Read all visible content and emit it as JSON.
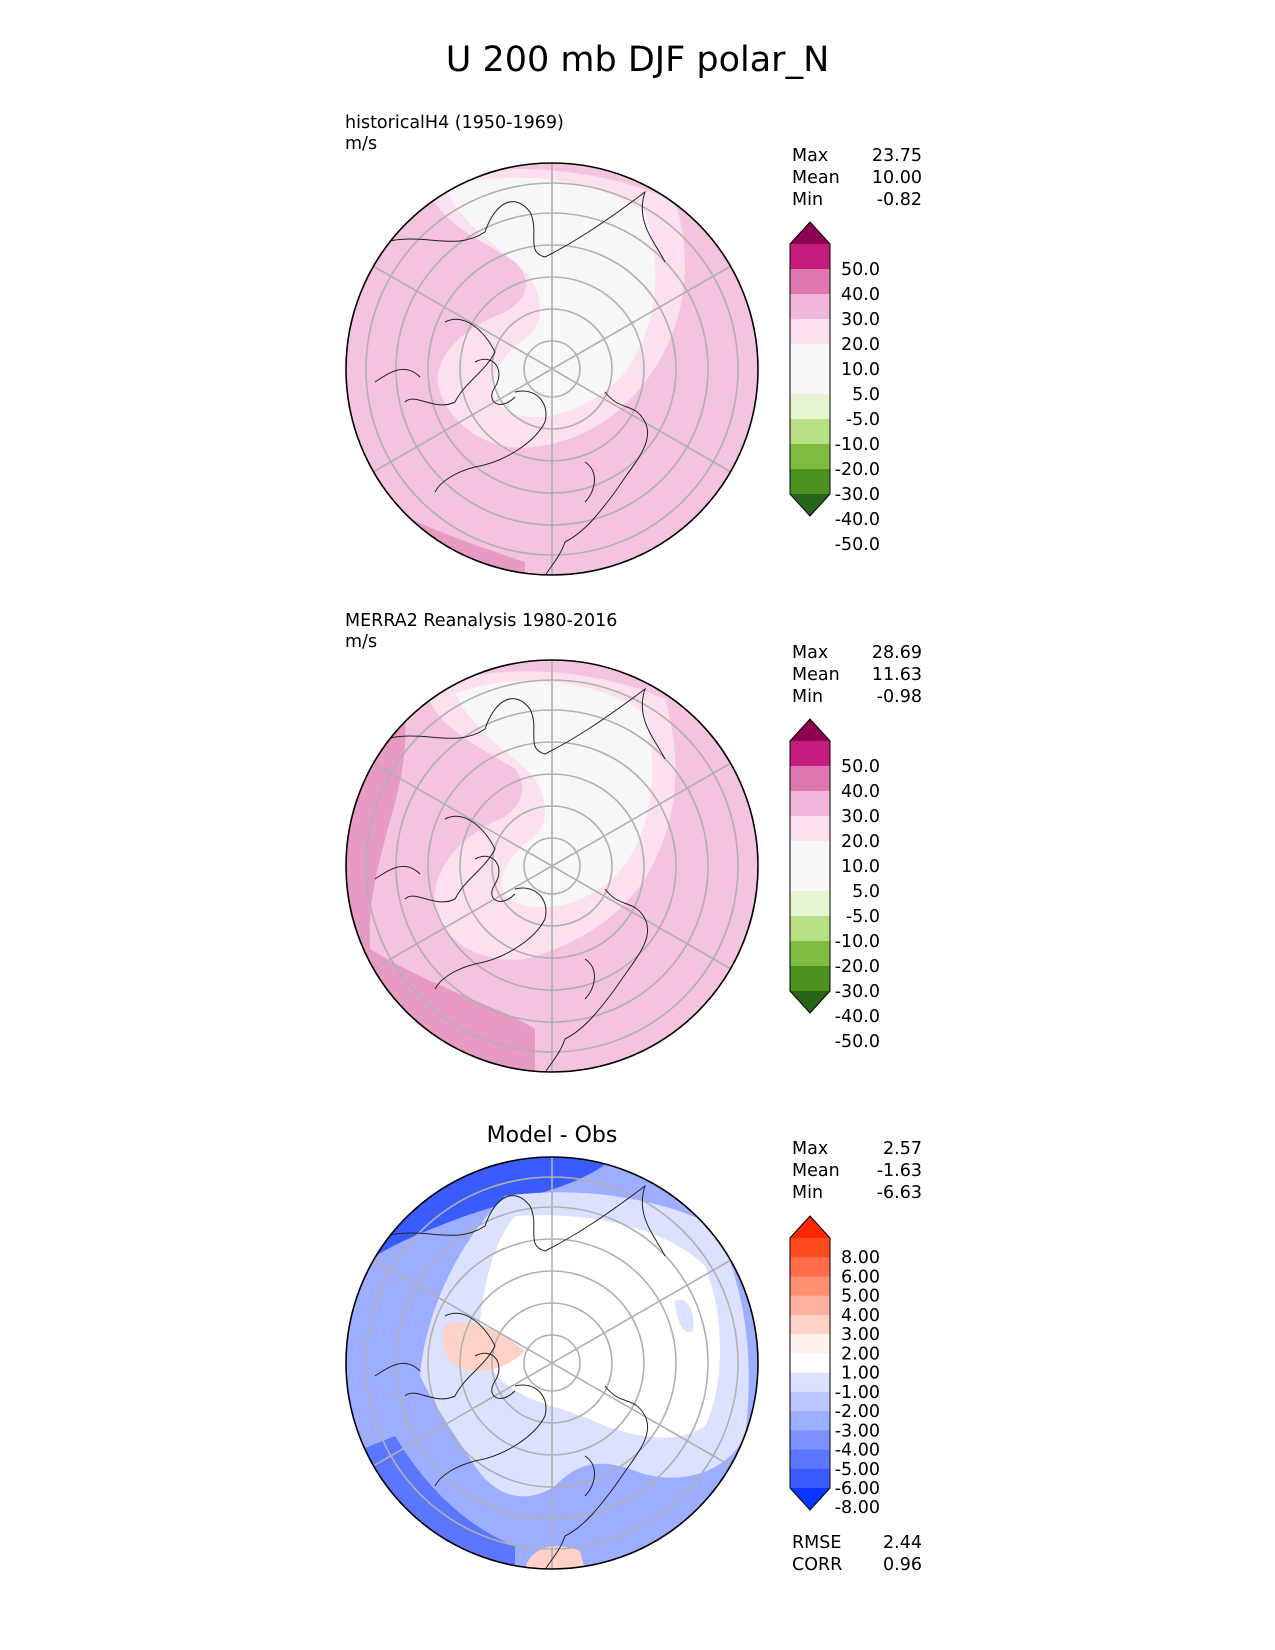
{
  "title": "U 200 mb DJF polar_N",
  "panels": [
    {
      "label_line1": "historicalH4 (1950-1969)",
      "label_line2": "m/s",
      "stats": [
        {
          "label": "Max",
          "value": "23.75"
        },
        {
          "label": "Mean",
          "value": "10.00"
        },
        {
          "label": "Min",
          "value": "-0.82"
        }
      ],
      "colorbar": {
        "ticks": [
          "50.0",
          "40.0",
          "30.0",
          "20.0",
          "10.0",
          "5.0",
          "-5.0",
          "-10.0",
          "-20.0",
          "-30.0",
          "-40.0",
          "-50.0"
        ],
        "colors_top_to_bottom": [
          "#8e0152",
          "#c51b7d",
          "#de77ae",
          "#f1b6da",
          "#fde0ef",
          "#f7f7f7",
          "#f7f7f7",
          "#e6f5d0",
          "#b8e186",
          "#7fbc41",
          "#4d9221",
          "#276419"
        ]
      }
    },
    {
      "label_line1": "MERRA2 Reanalysis 1980-2016",
      "label_line2": "m/s",
      "stats": [
        {
          "label": "Max",
          "value": "28.69"
        },
        {
          "label": "Mean",
          "value": "11.63"
        },
        {
          "label": "Min",
          "value": "-0.98"
        }
      ],
      "colorbar": {
        "ticks": [
          "50.0",
          "40.0",
          "30.0",
          "20.0",
          "10.0",
          "5.0",
          "-5.0",
          "-10.0",
          "-20.0",
          "-30.0",
          "-40.0",
          "-50.0"
        ],
        "colors_top_to_bottom": [
          "#8e0152",
          "#c51b7d",
          "#de77ae",
          "#f1b6da",
          "#fde0ef",
          "#f7f7f7",
          "#f7f7f7",
          "#e6f5d0",
          "#b8e186",
          "#7fbc41",
          "#4d9221",
          "#276419"
        ]
      }
    },
    {
      "center_title": "Model - Obs",
      "stats": [
        {
          "label": "Max",
          "value": "2.57"
        },
        {
          "label": "Mean",
          "value": "-1.63"
        },
        {
          "label": "Min",
          "value": "-6.63"
        }
      ],
      "bottom_stats": [
        {
          "label": "RMSE",
          "value": "2.44"
        },
        {
          "label": "CORR",
          "value": "0.96"
        }
      ],
      "colorbar": {
        "ticks": [
          "8.00",
          "6.00",
          "5.00",
          "4.00",
          "3.00",
          "2.00",
          "1.00",
          "-1.00",
          "-2.00",
          "-3.00",
          "-4.00",
          "-5.00",
          "-6.00",
          "-8.00"
        ],
        "colors_top_to_bottom": [
          "#ff2800",
          "#ff4a1f",
          "#ff6d4a",
          "#ff8f73",
          "#ffb09e",
          "#ffd2c7",
          "#fff1ec",
          "#ffffff",
          "#dbe1ff",
          "#bdc7ff",
          "#9dadff",
          "#7d92ff",
          "#5c77ff",
          "#3a5cff",
          "#0a37ff"
        ]
      }
    }
  ],
  "colors": {
    "pink_light": "#fde0ef",
    "pink_mid": "#f4c3df",
    "pink_dark": "#e79ac4",
    "neutral": "#f7f7f7",
    "blue_light": "#dbe1ff",
    "blue_mid": "#9dadff",
    "blue_dark": "#3a5cff",
    "salmon": "#ffd2c7",
    "grid": "#b0b0b0"
  }
}
